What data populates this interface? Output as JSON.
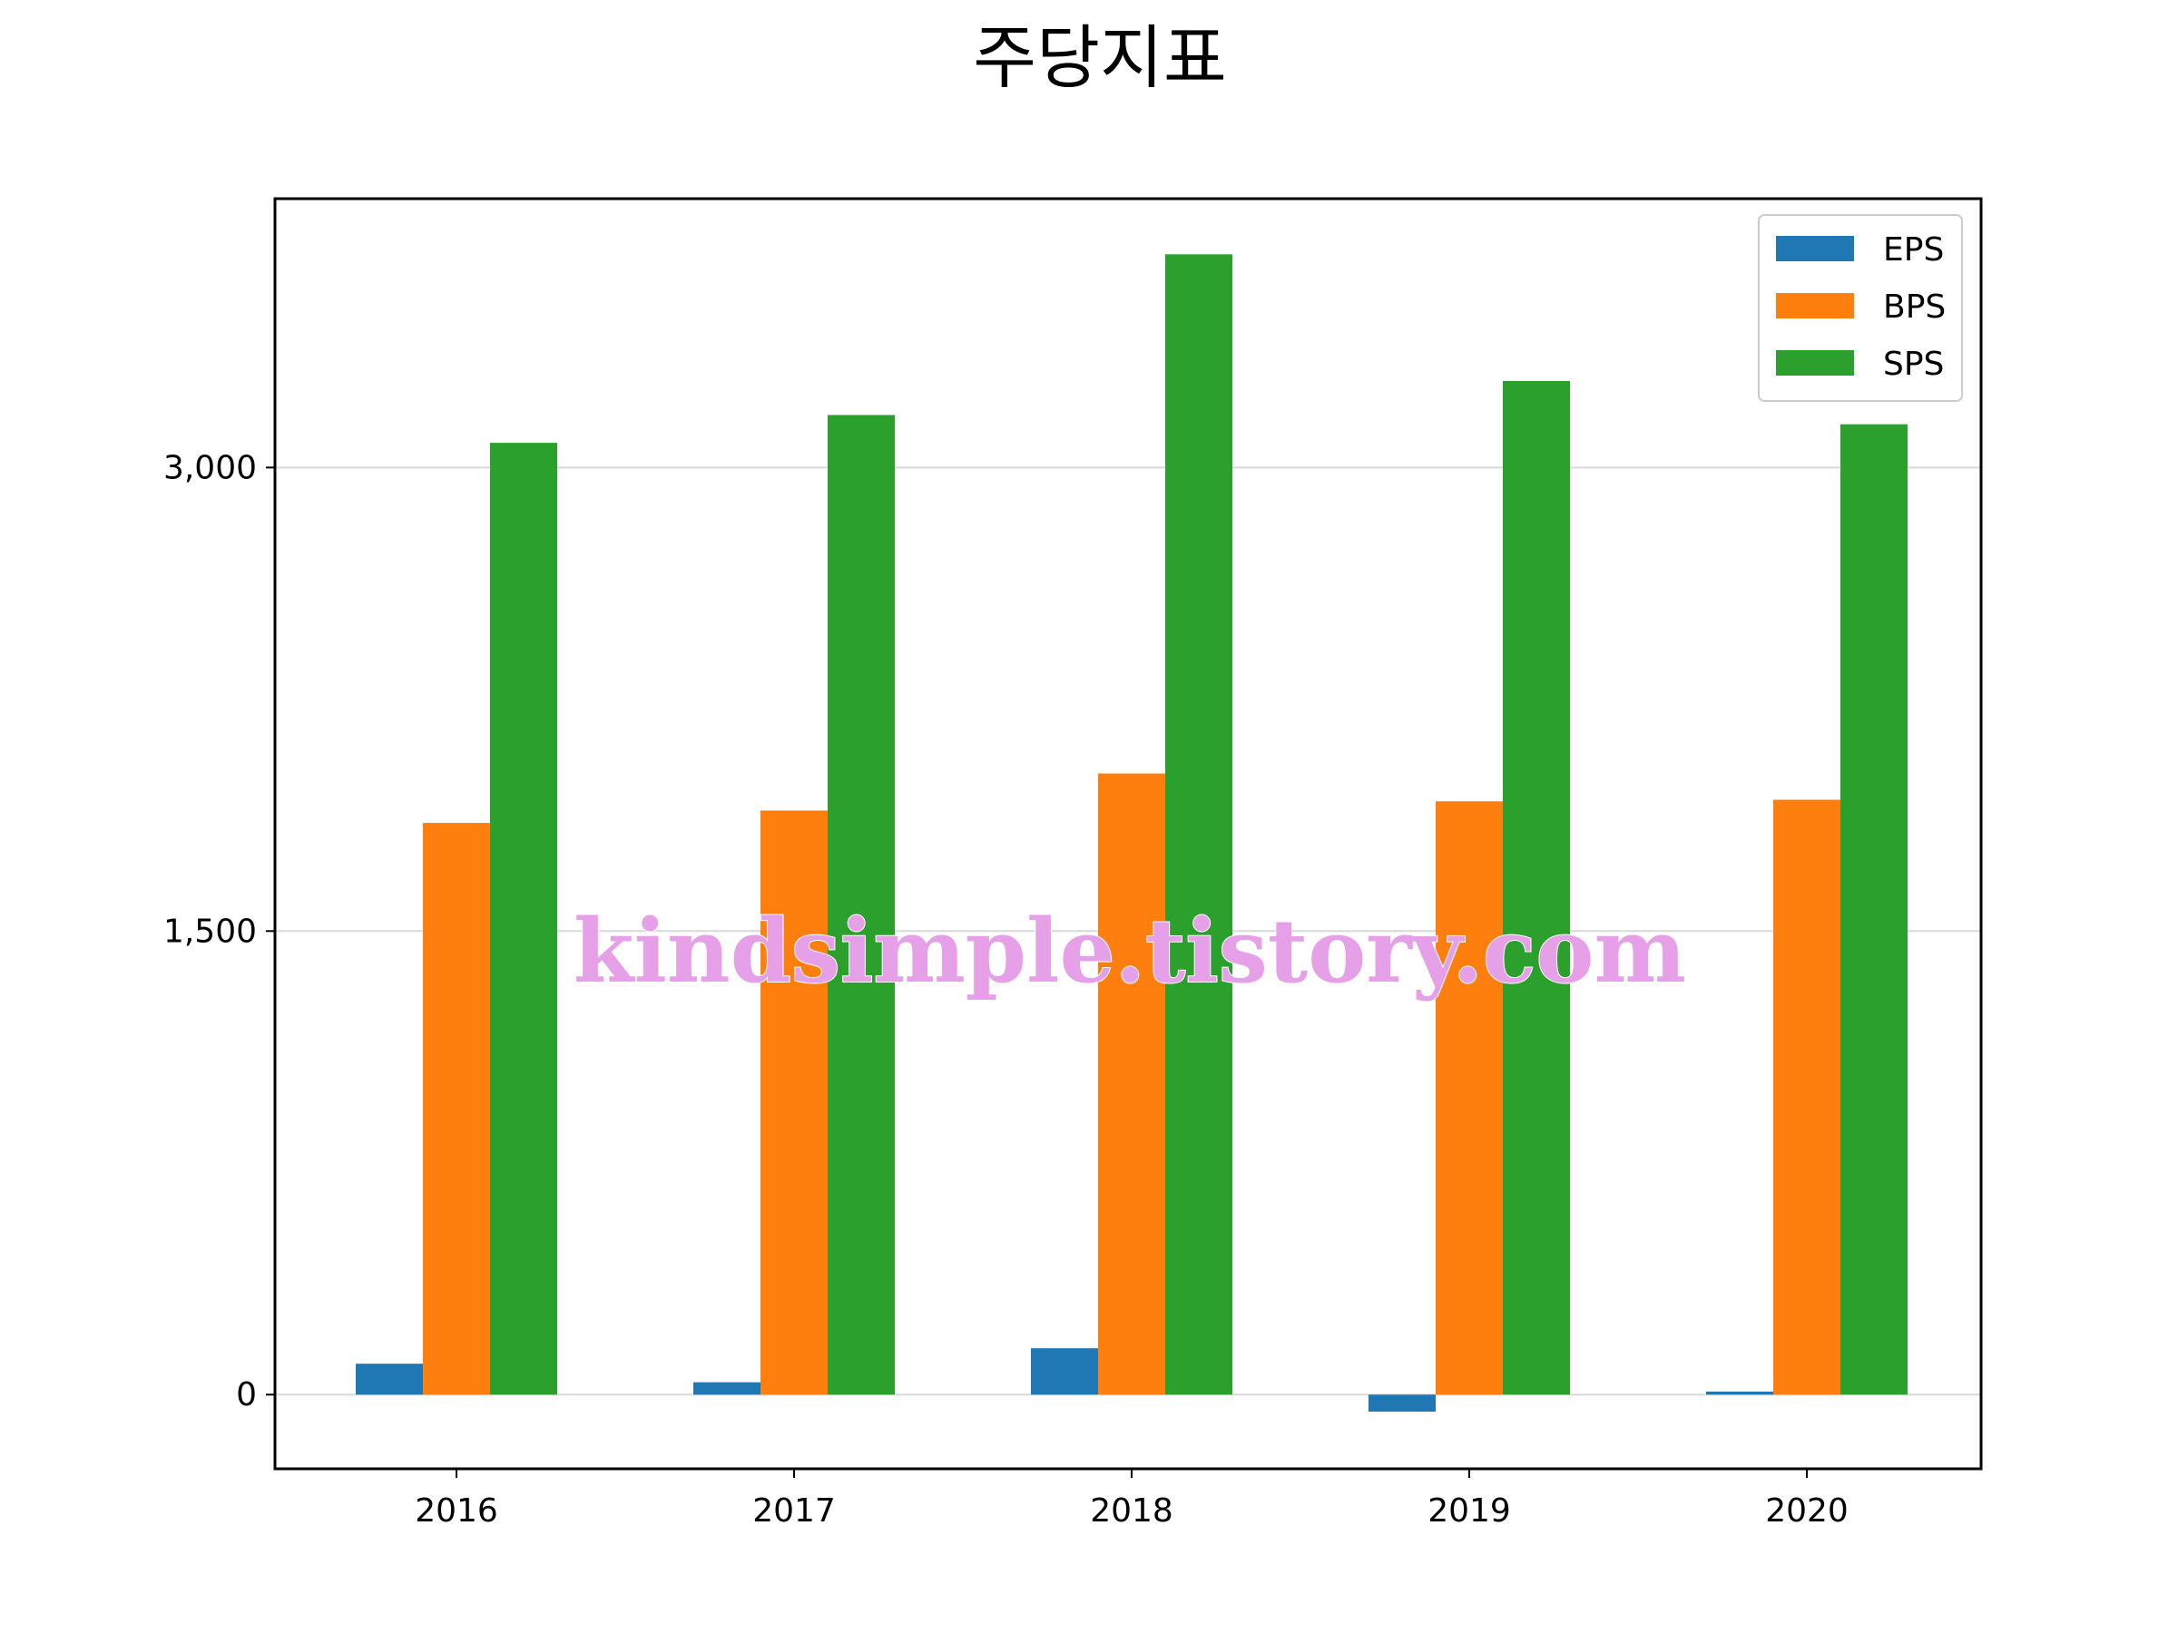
{
  "chart_data": {
    "type": "bar",
    "title": "주당지표",
    "xlabel": "",
    "ylabel": "",
    "categories": [
      "2016",
      "2017",
      "2018",
      "2019",
      "2020"
    ],
    "series": [
      {
        "name": "EPS",
        "color": "#1f77b4",
        "values": [
          100,
          40,
          150,
          -55,
          10
        ]
      },
      {
        "name": "BPS",
        "color": "#ff7f0e",
        "values": [
          1850,
          1890,
          2010,
          1920,
          1925
        ]
      },
      {
        "name": "SPS",
        "color": "#2ca02c",
        "values": [
          3080,
          3170,
          3690,
          3280,
          3140
        ]
      }
    ],
    "ylim": [
      -240,
      3870
    ],
    "yticks": [
      0,
      1500,
      3000
    ],
    "ytick_labels": [
      "0",
      "1,500",
      "3,000"
    ],
    "grid": "y",
    "legend_position": "top-right"
  },
  "watermark": "kindsimple.tistory.com"
}
